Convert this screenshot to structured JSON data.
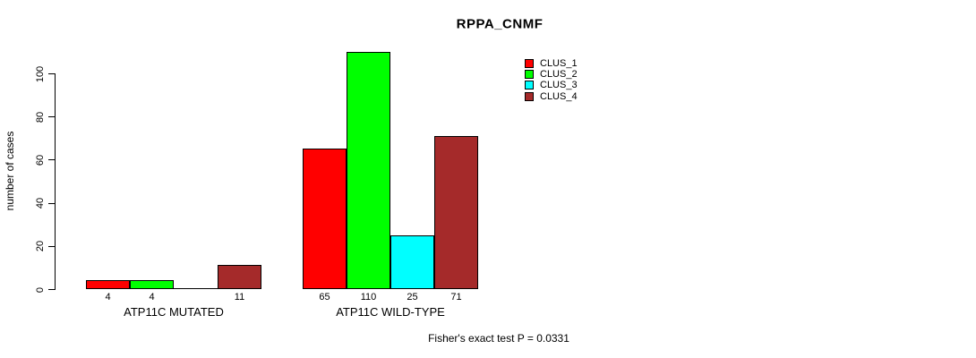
{
  "chart_data": {
    "type": "bar",
    "title": "RPPA_CNMF",
    "xlabel": "",
    "ylabel": "number of cases",
    "ylim": [
      0,
      110
    ],
    "yticks": [
      0,
      20,
      40,
      60,
      80,
      100
    ],
    "ytick_labels": [
      "0",
      "20",
      "40",
      "60",
      "80",
      "100"
    ],
    "grid": false,
    "categories": [
      "ATP11C MUTATED",
      "ATP11C WILD-TYPE"
    ],
    "series": [
      {
        "name": "CLUS_1",
        "color": "#FF0000",
        "values": [
          4,
          65
        ]
      },
      {
        "name": "CLUS_2",
        "color": "#00FF00",
        "values": [
          4,
          110
        ]
      },
      {
        "name": "CLUS_3",
        "color": "#00FFFF",
        "values": [
          0,
          25
        ]
      },
      {
        "name": "CLUS_4",
        "color": "#A52A2A",
        "values": [
          11,
          71
        ]
      }
    ],
    "bar_labels": [
      [
        "4",
        "4",
        "",
        "11"
      ],
      [
        "65",
        "110",
        "25",
        "71"
      ]
    ],
    "legend": {
      "position": "top-right",
      "entries": [
        "CLUS_1",
        "CLUS_2",
        "CLUS_3",
        "CLUS_4"
      ]
    },
    "annotation": "Fisher's exact test P = 0.0331",
    "colors": {
      "bar_border": "#000000",
      "axis": "#000000",
      "text": "#000000",
      "background": "#FFFFFF"
    }
  }
}
